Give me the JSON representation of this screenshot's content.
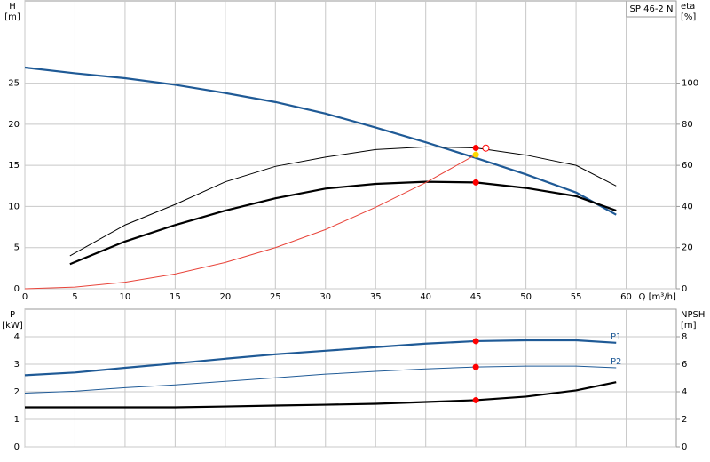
{
  "chart_data": [
    {
      "type": "line",
      "title": "SP 46-2 N",
      "x_label": "Q [m³/h]",
      "y_label": "H",
      "y_unit": "[m]",
      "y2_label": "eta",
      "y2_unit": "[%]",
      "xlim": [
        0,
        65
      ],
      "xticks": [
        0,
        5,
        10,
        15,
        20,
        25,
        30,
        35,
        40,
        45,
        50,
        55,
        60
      ],
      "ylim": [
        0,
        35
      ],
      "yticks": [
        0,
        5,
        10,
        15,
        20,
        25
      ],
      "y2lim": [
        0,
        140
      ],
      "y2ticks": [
        0,
        20,
        40,
        60,
        80,
        100
      ],
      "grid": true,
      "show_x_tick_labels": true,
      "series": [
        {
          "color": "#1f5a96",
          "weight": "bold",
          "axis": "y",
          "x": [
            0,
            5,
            10,
            15,
            20,
            25,
            30,
            35,
            40,
            45,
            50,
            55,
            59
          ],
          "values": [
            26.9,
            26.2,
            25.6,
            24.8,
            23.8,
            22.7,
            21.3,
            19.6,
            17.8,
            15.9,
            13.9,
            11.7,
            9.0
          ]
        },
        {
          "color": "#000000",
          "weight": "normal",
          "axis": "y2",
          "x": [
            4.5,
            10,
            15,
            20,
            25,
            30,
            35,
            40,
            45,
            50,
            55,
            59
          ],
          "values": [
            16,
            31,
            41,
            52,
            59.5,
            64,
            67.7,
            69,
            68.5,
            65,
            60,
            50
          ]
        },
        {
          "color": "#000000",
          "weight": "bold",
          "axis": "y2",
          "x": [
            4.5,
            10,
            15,
            20,
            25,
            30,
            35,
            40,
            45,
            50,
            55,
            59
          ],
          "values": [
            12,
            23,
            31,
            38,
            44,
            48.7,
            51,
            52,
            51.7,
            49,
            45,
            38
          ]
        },
        {
          "color": "#e8443a",
          "weight": "normal",
          "axis": "y",
          "x": [
            0,
            5,
            10,
            15,
            20,
            25,
            30,
            35,
            40,
            45
          ],
          "values": [
            0,
            0.2,
            0.8,
            1.8,
            3.2,
            5.0,
            7.2,
            9.9,
            12.9,
            16.3
          ]
        }
      ],
      "markers": [
        {
          "x": 45,
          "value": 68.5,
          "axis": "y2",
          "color": "#ff0000",
          "open": false
        },
        {
          "x": 46,
          "value": 68.4,
          "axis": "y2",
          "color": "#ff0000",
          "open": true
        },
        {
          "x": 45,
          "value": 16.3,
          "axis": "y",
          "color": "#ffd700",
          "open": false
        },
        {
          "x": 45,
          "value": 51.7,
          "axis": "y2",
          "color": "#ff0000",
          "open": false
        }
      ]
    },
    {
      "type": "line",
      "y_label": "P",
      "y_unit": "[kW]",
      "y2_label": "NPSH",
      "y2_unit": "[m]",
      "xlim": [
        0,
        65
      ],
      "xticks": [
        0,
        5,
        10,
        15,
        20,
        25,
        30,
        35,
        40,
        45,
        50,
        55,
        60
      ],
      "ylim": [
        0,
        5
      ],
      "yticks": [
        0,
        1,
        2,
        3,
        4
      ],
      "y2lim": [
        0,
        10
      ],
      "y2ticks": [
        0,
        2,
        4,
        6,
        8
      ],
      "grid": true,
      "show_x_tick_labels": false,
      "series": [
        {
          "name": "P1",
          "color": "#1f5a96",
          "weight": "bold",
          "axis": "y",
          "x": [
            0,
            5,
            10,
            15,
            20,
            25,
            30,
            35,
            40,
            45,
            50,
            55,
            59
          ],
          "values": [
            2.6,
            2.7,
            2.87,
            3.03,
            3.2,
            3.36,
            3.49,
            3.62,
            3.75,
            3.84,
            3.87,
            3.87,
            3.78
          ]
        },
        {
          "name": "P2",
          "color": "#1f5a96",
          "weight": "normal",
          "axis": "y",
          "x": [
            0,
            5,
            10,
            15,
            20,
            25,
            30,
            35,
            40,
            45,
            50,
            55,
            59
          ],
          "values": [
            1.95,
            2.02,
            2.15,
            2.25,
            2.38,
            2.51,
            2.64,
            2.74,
            2.83,
            2.9,
            2.93,
            2.93,
            2.87
          ]
        },
        {
          "color": "#000000",
          "weight": "bold",
          "axis": "y2",
          "x": [
            0,
            5,
            10,
            15,
            20,
            25,
            30,
            35,
            40,
            45,
            50,
            55,
            59
          ],
          "values": [
            2.87,
            2.87,
            2.87,
            2.87,
            2.93,
            3.0,
            3.06,
            3.13,
            3.26,
            3.39,
            3.65,
            4.1,
            4.7
          ]
        }
      ],
      "markers": [
        {
          "x": 45,
          "value": 3.84,
          "axis": "y",
          "color": "#ff0000",
          "open": false
        },
        {
          "x": 45,
          "value": 2.9,
          "axis": "y",
          "color": "#ff0000",
          "open": false
        },
        {
          "x": 45,
          "value": 3.39,
          "axis": "y2",
          "color": "#ff0000",
          "open": false
        }
      ]
    }
  ]
}
